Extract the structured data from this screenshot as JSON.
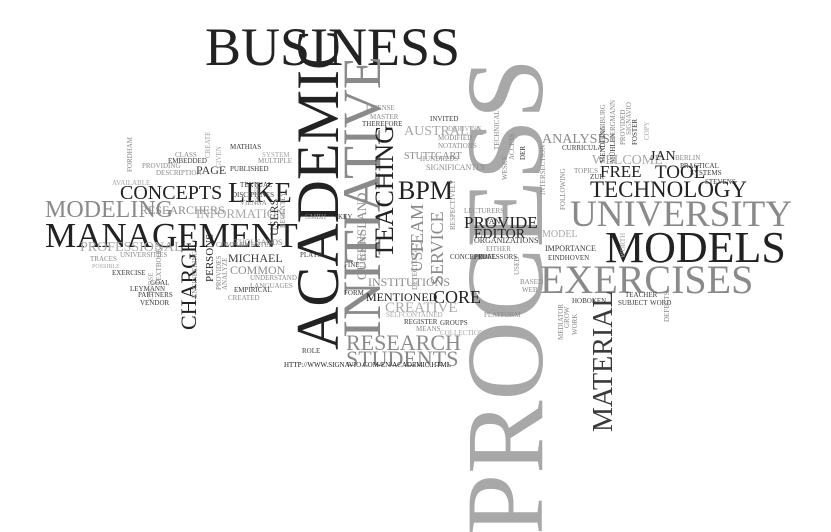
{
  "words": {
    "process": "PROCESS",
    "business": "BUSINESS",
    "academic": "ACADEMIC",
    "initiative": "INITIATIVE",
    "university": "UNIVERSITY",
    "models": "MODELS",
    "exercises": "EXERCISES",
    "management": "MANAGEMENT",
    "modeling": "MODELING",
    "technology": "TECHNOLOGY",
    "teaching": "TEACHING",
    "bpm": "BPM",
    "concepts": "CONCEPTS",
    "like": "LIKE",
    "charge": "CHARGE",
    "material": "MATERIAL",
    "research": "RESEARCH",
    "students": "STUDENTS",
    "provide": "PROVIDE",
    "editor": "EDITOR",
    "free": "FREE",
    "tool": "TOOL",
    "welcome": "WELCOME",
    "jan": "JAN",
    "analysis": "ANALYSIS",
    "australia": "AUSTRALIA",
    "team": "TEAM",
    "core": "CORE",
    "creative": "CREATIVE",
    "institutions": "INSTITUTIONS",
    "mentioned": "MENTIONED",
    "service": "SERVICE",
    "use": "USE",
    "queensland": "QUEENSLAND",
    "stuttgart": "STUTTGART",
    "significantly": "SIGNIFICANTLY",
    "hundreds": "HUNDREDS",
    "notations": "NOTATIONS",
    "modified": "MODIFIED",
    "invited": "INVITED",
    "therefore": "THEREFORE",
    "master": "MASTER",
    "license": "LICENSE",
    "researchers": "RESEARCHERS",
    "information": "INFORMATION",
    "professional": "PROFESSIONAL",
    "michael": "MICHAEL",
    "common": "COMMON",
    "persons": "PERSONS",
    "page": "PAGE",
    "users": "USERS",
    "published": "PUBLISHED",
    "thousands": "THOUSANDS",
    "complemented": "COMPLEMENTED",
    "understand": "UNDERSTAND",
    "languages": "LANGUAGES",
    "created": "CREATED",
    "empirical": "EMPIRICAL",
    "exercise": "EXERCISE",
    "leymann": "LEYMANN",
    "vendor": "VENDOR",
    "goal": "GOAL",
    "partners": "PARTNERS",
    "textbooks": "TEXTBOOKS",
    "traces": "TRACES",
    "universities": "UNIVERSITIES",
    "possible": "POSSIBLE",
    "available": "AVAILABLE",
    "class": "CLASS",
    "embedded": "EMBEDDED",
    "providing": "PROVIDING",
    "description": "DESCRIPTION",
    "mathias": "MATHIAS",
    "textual": "TEXTUAL",
    "system": "SYSTEM",
    "multiple": "MULTIPLE",
    "disciplines": "DISCIPLINES",
    "vienna": "VIENNA",
    "plays": "PLAYS",
    "role": "ROLE",
    "gmbh": "GMBH",
    "key": "KEY",
    "fine": "FINE",
    "form": "FORM",
    "url": "HTTP://WWW.SIGNAVIO.COM/EN/ACADEMIC.HTML",
    "register": "REGISTER",
    "groups": "GROUPS",
    "means": "MEANS",
    "selfcontained": "SELFCONTAINED",
    "conceptual": "CONCEPTUAL",
    "professors": "PROFESSORS",
    "organizations": "ORGANIZATIONS",
    "lecturers": "LECTURERS",
    "either": "EITHER",
    "van": "VAN",
    "collection": "COLLECTION",
    "platform": "PLATFORM",
    "based": "BASED",
    "web": "WEB",
    "model": "MODEL",
    "importance": "IMPORTANCE",
    "eindhoven": "EINDHOVEN",
    "hoboken": "HOBOKEN",
    "teacher": "TEACHER",
    "subject": "SUBJECT",
    "word": "WORD",
    "mediator": "MEDIATOR",
    "defects": "DEFECTS",
    "topics": "TOPICS",
    "zur": "ZUR",
    "der": "DER",
    "muhlen": "MÜHLEN",
    "mendling": "MENDLING",
    "curricula": "CURRICULA",
    "provided": "PROVIDED",
    "foster": "FOSTER",
    "weske": "WESKE",
    "berlin": "BERLIN",
    "practical": "PRACTICAL",
    "systems": "SYSTEMS",
    "stevens": "STEVENS",
    "access": "ACCESS",
    "technical": "TECHNICAL",
    "deriving": "DERIVING",
    "engineering": "ENGINEERING",
    "provides": "PROVIDES",
    "analyze": "ANALYZE",
    "assist": "ASSIST",
    "recently": "RECENTLY",
    "given": "GIVEN",
    "create": "CREATE",
    "fordham": "FORDHAM",
    "course": "COURSE",
    "licensed": "LICENSED",
    "detecting": "DETECTING",
    "respectively": "RESPECTIVELY",
    "following": "FOLLOWING",
    "intersection": "INTERSECTION",
    "used": "USED",
    "work": "WORK",
    "grow": "GROW",
    "worth": "WORTH",
    "copy": "COPY",
    "signavio": "SIGNAVIO",
    "bergmann": "BERGMANN",
    "hamburg": "HAMBURG"
  }
}
